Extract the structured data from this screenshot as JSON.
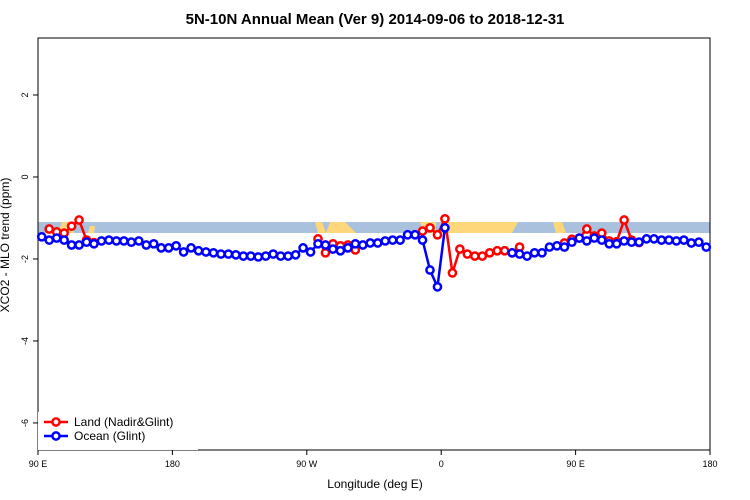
{
  "chart_data": {
    "type": "line",
    "title": "5N-10N Annual Mean (Ver 9)   2014-09-06 to 2018-12-31",
    "x_label": "Longitude (deg E)",
    "y_label": "XCO2 - MLO trend (ppm)",
    "x": [
      92.5,
      97.5,
      102.5,
      107.5,
      112.5,
      117.5,
      122.5,
      127.5,
      132.5,
      137.5,
      142.5,
      147.5,
      152.5,
      157.5,
      162.5,
      167.5,
      172.5,
      177.5,
      182.5,
      187.5,
      192.5,
      197.5,
      202.5,
      207.5,
      212.5,
      217.5,
      222.5,
      227.5,
      232.5,
      237.5,
      242.5,
      247.5,
      252.5,
      257.5,
      262.5,
      267.5,
      272.5,
      277.5,
      282.5,
      287.5,
      292.5,
      297.5,
      302.5,
      307.5,
      312.5,
      317.5,
      322.5,
      327.5,
      332.5,
      337.5,
      342.5,
      347.5,
      352.5,
      357.5,
      362.5,
      367.5,
      372.5,
      377.5,
      382.5,
      387.5,
      392.5,
      397.5,
      402.5,
      407.5,
      412.5,
      417.5,
      422.5,
      427.5,
      432.5,
      437.5,
      442.5,
      447.5,
      452.5,
      457.5,
      462.5,
      467.5,
      472.5,
      477.5,
      482.5,
      487.5,
      492.5,
      497.5,
      502.5,
      507.5,
      512.5,
      517.5,
      522.5,
      527.5,
      532.5,
      537.5
    ],
    "series": [
      {
        "name": "Land (Nadir&Glint)",
        "color": "#ff0000",
        "values": [
          null,
          -1.27,
          -1.34,
          -1.37,
          -1.2,
          -1.05,
          -1.54,
          -1.6,
          null,
          null,
          null,
          null,
          null,
          null,
          null,
          null,
          null,
          null,
          null,
          null,
          null,
          null,
          null,
          null,
          null,
          null,
          null,
          null,
          null,
          null,
          null,
          null,
          null,
          null,
          null,
          null,
          null,
          -1.51,
          -1.85,
          -1.63,
          -1.68,
          -1.66,
          -1.78,
          null,
          null,
          null,
          null,
          null,
          null,
          null,
          null,
          -1.32,
          -1.24,
          -1.41,
          -1.02,
          -2.34,
          -1.76,
          -1.88,
          -1.93,
          -1.93,
          -1.85,
          -1.8,
          -1.8,
          -1.85,
          -1.71,
          null,
          null,
          null,
          null,
          null,
          -1.61,
          -1.52,
          -1.49,
          -1.27,
          -1.44,
          -1.37,
          -1.56,
          -1.58,
          -1.05,
          -1.54,
          -1.6,
          null,
          null,
          null,
          null,
          null,
          null,
          null,
          null,
          null
        ]
      },
      {
        "name": "Ocean (Glint)",
        "color": "#0000ff",
        "values": [
          -1.46,
          -1.54,
          -1.49,
          -1.54,
          -1.66,
          -1.66,
          -1.59,
          -1.63,
          -1.56,
          -1.54,
          -1.56,
          -1.56,
          -1.59,
          -1.56,
          -1.66,
          -1.63,
          -1.73,
          -1.73,
          -1.68,
          -1.83,
          -1.73,
          -1.8,
          -1.83,
          -1.85,
          -1.88,
          -1.88,
          -1.9,
          -1.93,
          -1.93,
          -1.95,
          -1.93,
          -1.88,
          -1.93,
          -1.93,
          -1.9,
          -1.73,
          -1.83,
          -1.63,
          -1.66,
          -1.76,
          -1.8,
          -1.73,
          -1.63,
          -1.66,
          -1.61,
          -1.61,
          -1.56,
          -1.54,
          -1.54,
          -1.41,
          -1.41,
          -1.54,
          -2.27,
          -2.68,
          -1.24,
          null,
          null,
          null,
          null,
          null,
          null,
          null,
          null,
          -1.85,
          -1.88,
          -1.93,
          -1.85,
          -1.85,
          -1.71,
          -1.68,
          -1.71,
          -1.59,
          -1.49,
          -1.56,
          -1.49,
          -1.54,
          -1.63,
          -1.63,
          -1.56,
          -1.59,
          -1.59,
          -1.51,
          -1.51,
          -1.54,
          -1.54,
          -1.56,
          -1.54,
          -1.61,
          -1.59,
          -1.71
        ]
      }
    ],
    "xlim": [
      90,
      540
    ],
    "xticks": [
      {
        "value": 90,
        "label": "90 E"
      },
      180,
      {
        "value": 270,
        "label": "90 W"
      },
      {
        "value": 360,
        "label": "0"
      },
      {
        "value": 450,
        "label": "90 E"
      },
      {
        "value": 540,
        "label": "180"
      }
    ],
    "ylim": [
      -6.66,
      3.39
    ],
    "yticks": [
      -6,
      -4,
      -2,
      0,
      2
    ],
    "legend": "bottom-left"
  }
}
